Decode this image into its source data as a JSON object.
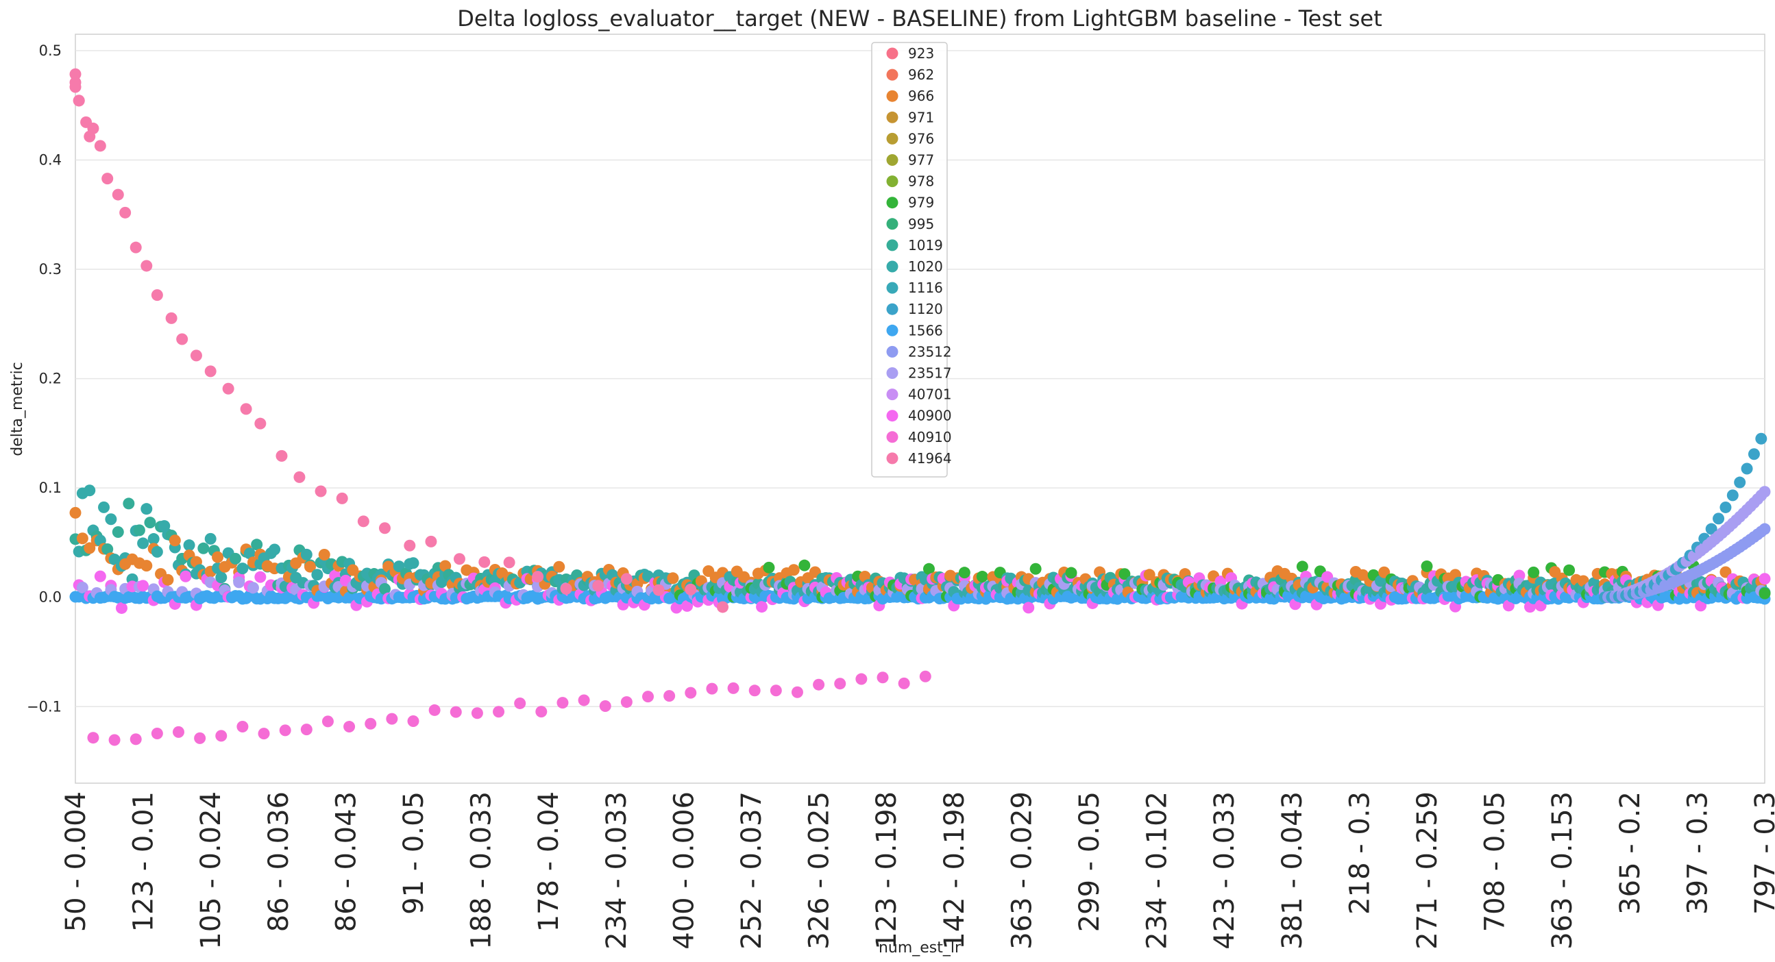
{
  "chart_data": {
    "type": "scatter",
    "title": "Delta logloss_evaluator__target (NEW - BASELINE) from LightGBM baseline - Test set",
    "xlabel": "num_est_lr",
    "ylabel": "delta_metric",
    "ylim": [
      -0.17,
      0.515
    ],
    "yticks": [
      -0.1,
      0.0,
      0.1,
      0.2,
      0.3,
      0.4,
      0.5
    ],
    "ytick_labels": [
      "−0.1",
      "0.0",
      "0.1",
      "0.2",
      "0.3",
      "0.4",
      "0.5"
    ],
    "x_tick_labels": [
      "50 - 0.004",
      "123 - 0.01",
      "105 - 0.024",
      "86 - 0.036",
      "86 - 0.043",
      "91 - 0.05",
      "188 - 0.033",
      "178 - 0.04",
      "234 - 0.033",
      "400 - 0.006",
      "252 - 0.037",
      "326 - 0.025",
      "123 - 0.198",
      "142 - 0.198",
      "363 - 0.029",
      "299 - 0.05",
      "234 - 0.102",
      "423 - 0.033",
      "381 - 0.043",
      "218 - 0.3",
      "271 - 0.259",
      "708 - 0.05",
      "363 - 0.153",
      "365 - 0.2",
      "397 - 0.3",
      "797 - 0.3"
    ],
    "x_categories_count": 476,
    "grid": "horizontal",
    "legend_position": "upper center",
    "series": [
      {
        "name": "923",
        "color": "#f77189"
      },
      {
        "name": "962",
        "color": "#f2755b"
      },
      {
        "name": "966",
        "color": "#e88431"
      },
      {
        "name": "971",
        "color": "#c69432"
      },
      {
        "name": "976",
        "color": "#b89d32"
      },
      {
        "name": "977",
        "color": "#9fa631"
      },
      {
        "name": "978",
        "color": "#82b132"
      },
      {
        "name": "979",
        "color": "#33b439"
      },
      {
        "name": "995",
        "color": "#34b07a"
      },
      {
        "name": "1019",
        "color": "#35ad98"
      },
      {
        "name": "1020",
        "color": "#36abaa"
      },
      {
        "name": "1116",
        "color": "#38a9b8"
      },
      {
        "name": "1120",
        "color": "#3ba3c9"
      },
      {
        "name": "1566",
        "color": "#3ea7f0"
      },
      {
        "name": "23512",
        "color": "#8e9bf1"
      },
      {
        "name": "23517",
        "color": "#a99ef2"
      },
      {
        "name": "40701",
        "color": "#c88ef4"
      },
      {
        "name": "40900",
        "color": "#f468f0"
      },
      {
        "name": "40910",
        "color": "#f56cd5"
      },
      {
        "name": "41964",
        "color": "#f67aab"
      }
    ]
  }
}
